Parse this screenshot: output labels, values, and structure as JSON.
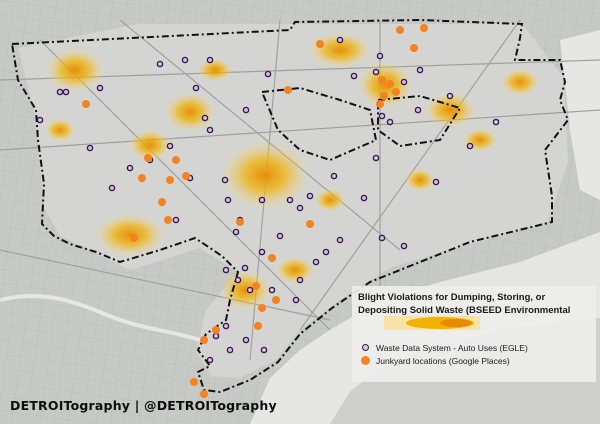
{
  "legend": {
    "title_line1": "Blight Violations for Dumping, Storing, or",
    "title_line2": "Depositing Solid Waste (BSEED Environmental",
    "heat_swatch_icon": "heat-gradient-swatch",
    "items": [
      {
        "label": "Waste Data System - Auto Uses (EGLE)",
        "icon": "purple-ring-dot",
        "color": "#3a1a4a"
      },
      {
        "label": "Junkyard locations (Google Places)",
        "icon": "orange-dot",
        "color": "#f58220"
      }
    ]
  },
  "credit": "DETROITography | @DETROITography",
  "colors": {
    "heat_core": "#e88a00",
    "heat_mid": "#f2b200",
    "heat_edge": "#f7d98a",
    "boundary": "#111111",
    "basemap": "#c9cbc8",
    "water": "#e9eae8"
  }
}
